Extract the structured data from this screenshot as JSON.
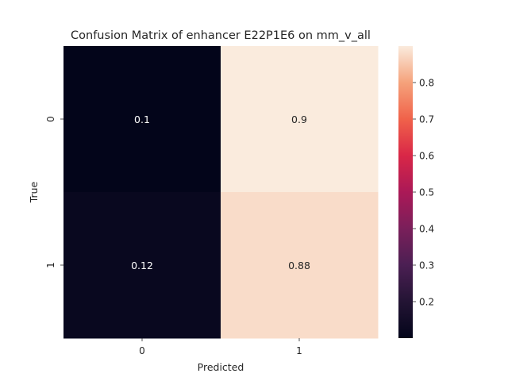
{
  "chart_data": {
    "type": "heatmap",
    "title": "Confusion Matrix of enhancer E22P1E6 on mm_v_all",
    "xlabel": "Predicted",
    "ylabel": "True",
    "x_categories": [
      "0",
      "1"
    ],
    "y_categories": [
      "0",
      "1"
    ],
    "values": [
      [
        0.1,
        0.9
      ],
      [
        0.12,
        0.88
      ]
    ],
    "value_labels": [
      [
        "0.1",
        "0.9"
      ],
      [
        "0.12",
        "0.88"
      ]
    ],
    "colormap": "rocket",
    "vmin": 0.1,
    "vmax": 0.9,
    "colorbar_ticks": [
      "0.2",
      "0.3",
      "0.4",
      "0.5",
      "0.6",
      "0.7",
      "0.8"
    ],
    "colorbar_tick_values": [
      0.2,
      0.3,
      0.4,
      0.5,
      0.6,
      0.7,
      0.8
    ],
    "grid": false
  }
}
